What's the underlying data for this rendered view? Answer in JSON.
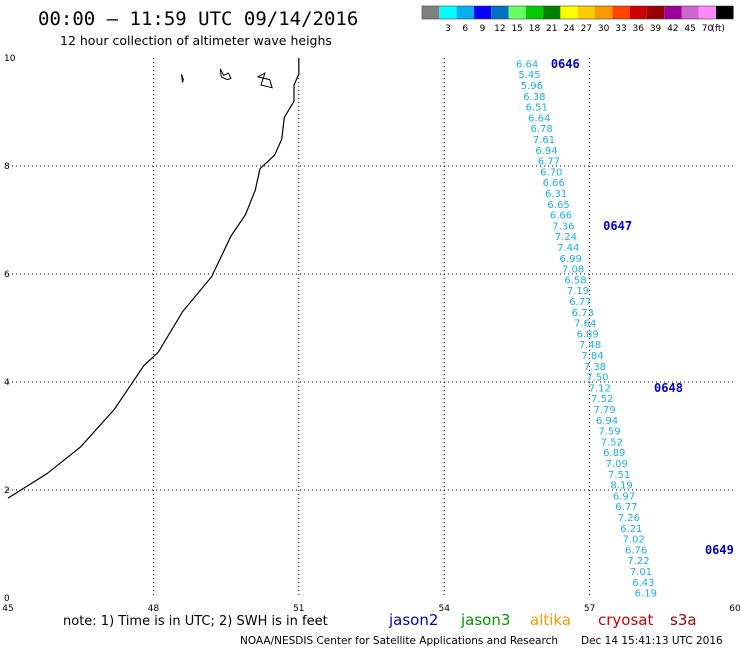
{
  "title": "00:00 – 11:59 UTC 09/14/2016",
  "subtitle": "12 hour collection of altimeter wave heighs",
  "colorbar": {
    "colors": [
      "#7f7f7f",
      "#00ffff",
      "#00b0f0",
      "#0000ff",
      "#0070c0",
      "#66ff66",
      "#00cc00",
      "#008000",
      "#ffff00",
      "#ffcc00",
      "#ff9900",
      "#ff4400",
      "#cc0000",
      "#990000",
      "#990099",
      "#cc66cc",
      "#ff88ff",
      "#000000"
    ],
    "labels": [
      "3",
      "6",
      "9",
      "12",
      "15",
      "18",
      "21",
      "24",
      "27",
      "30",
      "33",
      "36",
      "39",
      "42",
      "45",
      "70"
    ],
    "unit": "(ft)"
  },
  "chart_data": {
    "type": "scatter",
    "title": "00:00 – 11:59 UTC 09/14/2016",
    "subtitle": "12 hour collection of altimeter wave heighs",
    "xlim": [
      45,
      60
    ],
    "ylim": [
      0,
      10
    ],
    "x_ticks": [
      "45",
      "48",
      "51",
      "54",
      "57",
      "60"
    ],
    "y_ticks": [
      "0",
      "2",
      "4",
      "6",
      "8",
      "10"
    ],
    "grid": true,
    "series": [
      {
        "name": "jason2",
        "unit": "ft",
        "points": [
          {
            "x": 55.48,
            "y": 9.89,
            "label": "6.64"
          },
          {
            "x": 55.53,
            "y": 9.69,
            "label": "5.45"
          },
          {
            "x": 55.58,
            "y": 9.49,
            "label": "5.96"
          },
          {
            "x": 55.63,
            "y": 9.29,
            "label": "6.38"
          },
          {
            "x": 55.68,
            "y": 9.09,
            "label": "6.51"
          },
          {
            "x": 55.73,
            "y": 8.89,
            "label": "6.64"
          },
          {
            "x": 55.78,
            "y": 8.69,
            "label": "6.78"
          },
          {
            "x": 55.83,
            "y": 8.49,
            "label": "7.61"
          },
          {
            "x": 55.88,
            "y": 8.29,
            "label": "6.94"
          },
          {
            "x": 55.93,
            "y": 8.09,
            "label": "6.77"
          },
          {
            "x": 55.98,
            "y": 7.89,
            "label": "6.70"
          },
          {
            "x": 56.03,
            "y": 7.69,
            "label": "6.66"
          },
          {
            "x": 56.08,
            "y": 7.49,
            "label": "6.31"
          },
          {
            "x": 56.13,
            "y": 7.29,
            "label": "6.65"
          },
          {
            "x": 56.18,
            "y": 7.09,
            "label": "6.66"
          },
          {
            "x": 56.23,
            "y": 6.89,
            "label": "7.36"
          },
          {
            "x": 56.28,
            "y": 6.69,
            "label": "7.24"
          },
          {
            "x": 56.33,
            "y": 6.49,
            "label": "7.44"
          },
          {
            "x": 56.38,
            "y": 6.29,
            "label": "6.99"
          },
          {
            "x": 56.43,
            "y": 6.09,
            "label": "7.08"
          },
          {
            "x": 56.48,
            "y": 5.89,
            "label": "6.58"
          },
          {
            "x": 56.53,
            "y": 5.69,
            "label": "7.19"
          },
          {
            "x": 56.58,
            "y": 5.49,
            "label": "6.77"
          },
          {
            "x": 56.63,
            "y": 5.29,
            "label": "6.73"
          },
          {
            "x": 56.68,
            "y": 5.09,
            "label": "7.64"
          },
          {
            "x": 56.73,
            "y": 4.89,
            "label": "6.89"
          },
          {
            "x": 56.78,
            "y": 4.69,
            "label": "7.48"
          },
          {
            "x": 56.83,
            "y": 4.49,
            "label": "7.84"
          },
          {
            "x": 56.88,
            "y": 4.29,
            "label": "7.38"
          },
          {
            "x": 56.93,
            "y": 4.09,
            "label": "7.50"
          },
          {
            "x": 56.98,
            "y": 3.89,
            "label": "7.12"
          },
          {
            "x": 57.03,
            "y": 3.69,
            "label": "7.52"
          },
          {
            "x": 57.08,
            "y": 3.49,
            "label": "7.79"
          },
          {
            "x": 57.13,
            "y": 3.29,
            "label": "6.94"
          },
          {
            "x": 57.18,
            "y": 3.09,
            "label": "7.59"
          },
          {
            "x": 57.23,
            "y": 2.89,
            "label": "7.52"
          },
          {
            "x": 57.28,
            "y": 2.69,
            "label": "6.89"
          },
          {
            "x": 57.33,
            "y": 2.49,
            "label": "7.09"
          },
          {
            "x": 57.38,
            "y": 2.29,
            "label": "7.51"
          },
          {
            "x": 57.43,
            "y": 2.09,
            "label": "8.19"
          },
          {
            "x": 57.48,
            "y": 1.89,
            "label": "6.97"
          },
          {
            "x": 57.53,
            "y": 1.69,
            "label": "6.77"
          },
          {
            "x": 57.58,
            "y": 1.49,
            "label": "7.26"
          },
          {
            "x": 57.63,
            "y": 1.29,
            "label": "6.21"
          },
          {
            "x": 57.68,
            "y": 1.09,
            "label": "7.02"
          },
          {
            "x": 57.73,
            "y": 0.89,
            "label": "6.76"
          },
          {
            "x": 57.78,
            "y": 0.69,
            "label": "7.22"
          },
          {
            "x": 57.83,
            "y": 0.49,
            "label": "7.01"
          },
          {
            "x": 57.88,
            "y": 0.29,
            "label": "6.43"
          },
          {
            "x": 57.93,
            "y": 0.09,
            "label": "6.19"
          }
        ]
      }
    ],
    "time_labels": [
      {
        "x": 56.2,
        "y": 9.89,
        "label": "0646"
      },
      {
        "x": 57.28,
        "y": 6.89,
        "label": "0647"
      },
      {
        "x": 58.33,
        "y": 3.89,
        "label": "0648"
      },
      {
        "x": 59.38,
        "y": 0.89,
        "label": "0649"
      }
    ],
    "coastline": [
      [
        45.0,
        1.85
      ],
      [
        45.8,
        2.3
      ],
      [
        46.5,
        2.8
      ],
      [
        47.2,
        3.5
      ],
      [
        47.8,
        4.3
      ],
      [
        48.1,
        4.55
      ],
      [
        48.6,
        5.3
      ],
      [
        49.2,
        5.95
      ],
      [
        49.6,
        6.7
      ],
      [
        49.9,
        7.1
      ],
      [
        50.1,
        7.55
      ],
      [
        50.2,
        7.95
      ],
      [
        50.5,
        8.2
      ],
      [
        50.65,
        8.5
      ],
      [
        50.7,
        8.9
      ],
      [
        50.9,
        9.2
      ],
      [
        50.9,
        9.5
      ],
      [
        51.0,
        9.7
      ],
      [
        51.0,
        10.0
      ]
    ],
    "islands": [
      [
        [
          48.58,
          9.7
        ],
        [
          48.6,
          9.55
        ],
        [
          48.62,
          9.6
        ],
        [
          48.58,
          9.7
        ]
      ],
      [
        [
          49.38,
          9.8
        ],
        [
          49.45,
          9.68
        ],
        [
          49.55,
          9.72
        ],
        [
          49.6,
          9.62
        ],
        [
          49.52,
          9.6
        ],
        [
          49.4,
          9.65
        ],
        [
          49.38,
          9.8
        ]
      ],
      [
        [
          50.15,
          9.65
        ],
        [
          50.3,
          9.72
        ],
        [
          50.22,
          9.5
        ],
        [
          50.45,
          9.45
        ],
        [
          50.4,
          9.6
        ],
        [
          50.15,
          9.65
        ]
      ]
    ]
  },
  "legend": {
    "note": "note: 1) Time is in UTC; 2) SWH is in feet",
    "missions": [
      {
        "name": "jason2",
        "color": "#0000cc"
      },
      {
        "name": "jason3",
        "color": "#009900"
      },
      {
        "name": "altika",
        "color": "#ff9900"
      },
      {
        "name": "cryosat",
        "color": "#cc0000"
      },
      {
        "name": "s3a",
        "color": "#990000"
      }
    ]
  },
  "credit": "NOAA/NESDIS Center for Satellite Applications and Research",
  "timestamp": "Dec 14 15:41:13 UTC 2016"
}
